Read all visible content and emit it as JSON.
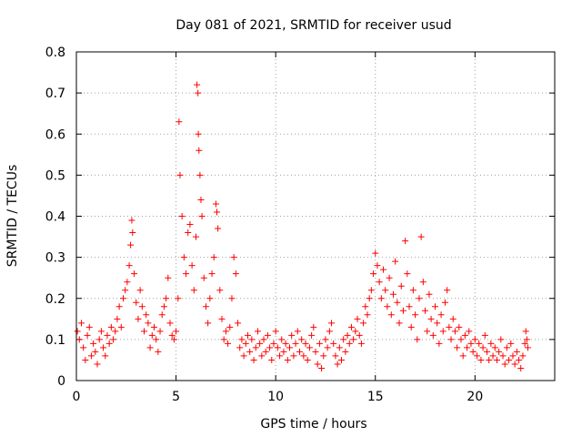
{
  "chart_data": {
    "type": "scatter",
    "title": "Day 081 of 2021, SRMTID for receiver usud",
    "xlabel": "GPS time / hours",
    "ylabel": "SRMTID / TECUs",
    "xlim": [
      0,
      24
    ],
    "ylim": [
      0,
      0.8
    ],
    "xticks": [
      0,
      5,
      10,
      15,
      20
    ],
    "yticks": [
      0,
      0.1,
      0.2,
      0.3,
      0.4,
      0.5,
      0.6,
      0.7,
      0.8
    ],
    "xtick_labels": [
      "0",
      "5",
      "10",
      "15",
      "20"
    ],
    "ytick_labels": [
      "0",
      "0.1",
      "0.2",
      "0.3",
      "0.4",
      "0.5",
      "0.6",
      "0.7",
      "0.8"
    ],
    "grid": true,
    "marker": "+",
    "marker_color": "#ff0000",
    "series": [
      {
        "name": "SRMTID",
        "points": [
          [
            0.05,
            0.12
          ],
          [
            0.15,
            0.1
          ],
          [
            0.25,
            0.14
          ],
          [
            0.35,
            0.08
          ],
          [
            0.45,
            0.05
          ],
          [
            0.55,
            0.11
          ],
          [
            0.65,
            0.13
          ],
          [
            0.75,
            0.06
          ],
          [
            0.85,
            0.09
          ],
          [
            0.95,
            0.07
          ],
          [
            1.05,
            0.04
          ],
          [
            1.15,
            0.1
          ],
          [
            1.25,
            0.12
          ],
          [
            1.35,
            0.08
          ],
          [
            1.45,
            0.06
          ],
          [
            1.55,
            0.11
          ],
          [
            1.65,
            0.09
          ],
          [
            1.75,
            0.13
          ],
          [
            1.85,
            0.1
          ],
          [
            1.95,
            0.12
          ],
          [
            2.05,
            0.15
          ],
          [
            2.15,
            0.18
          ],
          [
            2.25,
            0.13
          ],
          [
            2.35,
            0.2
          ],
          [
            2.45,
            0.22
          ],
          [
            2.55,
            0.24
          ],
          [
            2.65,
            0.28
          ],
          [
            2.72,
            0.33
          ],
          [
            2.78,
            0.39
          ],
          [
            2.82,
            0.36
          ],
          [
            2.9,
            0.26
          ],
          [
            3.0,
            0.19
          ],
          [
            3.1,
            0.15
          ],
          [
            3.2,
            0.22
          ],
          [
            3.3,
            0.18
          ],
          [
            3.4,
            0.12
          ],
          [
            3.5,
            0.16
          ],
          [
            3.6,
            0.14
          ],
          [
            3.7,
            0.08
          ],
          [
            3.8,
            0.11
          ],
          [
            3.9,
            0.13
          ],
          [
            4.0,
            0.1
          ],
          [
            4.1,
            0.07
          ],
          [
            4.2,
            0.12
          ],
          [
            4.3,
            0.16
          ],
          [
            4.4,
            0.18
          ],
          [
            4.5,
            0.2
          ],
          [
            4.6,
            0.25
          ],
          [
            4.7,
            0.14
          ],
          [
            4.8,
            0.11
          ],
          [
            4.9,
            0.1
          ],
          [
            5.0,
            0.12
          ],
          [
            5.1,
            0.2
          ],
          [
            5.15,
            0.63
          ],
          [
            5.2,
            0.5
          ],
          [
            5.3,
            0.4
          ],
          [
            5.4,
            0.3
          ],
          [
            5.5,
            0.26
          ],
          [
            5.6,
            0.36
          ],
          [
            5.7,
            0.38
          ],
          [
            5.8,
            0.28
          ],
          [
            5.9,
            0.22
          ],
          [
            6.0,
            0.35
          ],
          [
            6.05,
            0.72
          ],
          [
            6.1,
            0.7
          ],
          [
            6.12,
            0.6
          ],
          [
            6.15,
            0.56
          ],
          [
            6.2,
            0.5
          ],
          [
            6.25,
            0.44
          ],
          [
            6.3,
            0.4
          ],
          [
            6.4,
            0.25
          ],
          [
            6.5,
            0.18
          ],
          [
            6.6,
            0.14
          ],
          [
            6.7,
            0.2
          ],
          [
            6.8,
            0.26
          ],
          [
            6.9,
            0.3
          ],
          [
            7.0,
            0.43
          ],
          [
            7.05,
            0.41
          ],
          [
            7.1,
            0.37
          ],
          [
            7.2,
            0.22
          ],
          [
            7.3,
            0.15
          ],
          [
            7.4,
            0.1
          ],
          [
            7.5,
            0.12
          ],
          [
            7.6,
            0.09
          ],
          [
            7.7,
            0.13
          ],
          [
            7.8,
            0.2
          ],
          [
            7.9,
            0.3
          ],
          [
            8.0,
            0.26
          ],
          [
            8.1,
            0.14
          ],
          [
            8.2,
            0.08
          ],
          [
            8.3,
            0.1
          ],
          [
            8.4,
            0.06
          ],
          [
            8.5,
            0.09
          ],
          [
            8.6,
            0.11
          ],
          [
            8.7,
            0.07
          ],
          [
            8.8,
            0.1
          ],
          [
            8.9,
            0.05
          ],
          [
            9.0,
            0.08
          ],
          [
            9.1,
            0.12
          ],
          [
            9.2,
            0.09
          ],
          [
            9.3,
            0.06
          ],
          [
            9.4,
            0.1
          ],
          [
            9.5,
            0.07
          ],
          [
            9.6,
            0.11
          ],
          [
            9.7,
            0.08
          ],
          [
            9.8,
            0.05
          ],
          [
            9.9,
            0.09
          ],
          [
            10.0,
            0.12
          ],
          [
            10.1,
            0.08
          ],
          [
            10.2,
            0.06
          ],
          [
            10.3,
            0.1
          ],
          [
            10.4,
            0.07
          ],
          [
            10.5,
            0.09
          ],
          [
            10.6,
            0.05
          ],
          [
            10.7,
            0.08
          ],
          [
            10.8,
            0.11
          ],
          [
            10.9,
            0.06
          ],
          [
            11.0,
            0.09
          ],
          [
            11.1,
            0.12
          ],
          [
            11.2,
            0.07
          ],
          [
            11.3,
            0.1
          ],
          [
            11.4,
            0.06
          ],
          [
            11.5,
            0.09
          ],
          [
            11.6,
            0.05
          ],
          [
            11.7,
            0.08
          ],
          [
            11.8,
            0.11
          ],
          [
            11.9,
            0.13
          ],
          [
            12.0,
            0.07
          ],
          [
            12.1,
            0.04
          ],
          [
            12.2,
            0.09
          ],
          [
            12.3,
            0.03
          ],
          [
            12.4,
            0.06
          ],
          [
            12.5,
            0.1
          ],
          [
            12.6,
            0.08
          ],
          [
            12.7,
            0.12
          ],
          [
            12.8,
            0.14
          ],
          [
            12.9,
            0.09
          ],
          [
            13.0,
            0.06
          ],
          [
            13.1,
            0.04
          ],
          [
            13.2,
            0.08
          ],
          [
            13.3,
            0.05
          ],
          [
            13.4,
            0.1
          ],
          [
            13.5,
            0.07
          ],
          [
            13.6,
            0.11
          ],
          [
            13.7,
            0.09
          ],
          [
            13.8,
            0.13
          ],
          [
            13.9,
            0.1
          ],
          [
            14.0,
            0.12
          ],
          [
            14.1,
            0.15
          ],
          [
            14.2,
            0.11
          ],
          [
            14.3,
            0.09
          ],
          [
            14.4,
            0.14
          ],
          [
            14.5,
            0.18
          ],
          [
            14.6,
            0.16
          ],
          [
            14.7,
            0.2
          ],
          [
            14.8,
            0.22
          ],
          [
            14.9,
            0.26
          ],
          [
            15.0,
            0.31
          ],
          [
            15.1,
            0.28
          ],
          [
            15.2,
            0.24
          ],
          [
            15.3,
            0.2
          ],
          [
            15.4,
            0.27
          ],
          [
            15.5,
            0.22
          ],
          [
            15.6,
            0.18
          ],
          [
            15.7,
            0.25
          ],
          [
            15.8,
            0.16
          ],
          [
            15.9,
            0.21
          ],
          [
            16.0,
            0.29
          ],
          [
            16.1,
            0.19
          ],
          [
            16.2,
            0.14
          ],
          [
            16.3,
            0.23
          ],
          [
            16.4,
            0.17
          ],
          [
            16.5,
            0.34
          ],
          [
            16.6,
            0.26
          ],
          [
            16.7,
            0.18
          ],
          [
            16.8,
            0.13
          ],
          [
            16.9,
            0.22
          ],
          [
            17.0,
            0.16
          ],
          [
            17.1,
            0.1
          ],
          [
            17.2,
            0.2
          ],
          [
            17.3,
            0.35
          ],
          [
            17.4,
            0.24
          ],
          [
            17.5,
            0.17
          ],
          [
            17.6,
            0.12
          ],
          [
            17.7,
            0.21
          ],
          [
            17.8,
            0.15
          ],
          [
            17.9,
            0.11
          ],
          [
            18.0,
            0.18
          ],
          [
            18.1,
            0.14
          ],
          [
            18.2,
            0.09
          ],
          [
            18.3,
            0.16
          ],
          [
            18.4,
            0.12
          ],
          [
            18.5,
            0.19
          ],
          [
            18.6,
            0.22
          ],
          [
            18.7,
            0.13
          ],
          [
            18.8,
            0.1
          ],
          [
            18.9,
            0.15
          ],
          [
            19.0,
            0.12
          ],
          [
            19.1,
            0.08
          ],
          [
            19.2,
            0.13
          ],
          [
            19.3,
            0.1
          ],
          [
            19.4,
            0.06
          ],
          [
            19.5,
            0.11
          ],
          [
            19.6,
            0.08
          ],
          [
            19.7,
            0.12
          ],
          [
            19.8,
            0.09
          ],
          [
            19.9,
            0.07
          ],
          [
            20.0,
            0.1
          ],
          [
            20.1,
            0.06
          ],
          [
            20.2,
            0.09
          ],
          [
            20.3,
            0.05
          ],
          [
            20.4,
            0.08
          ],
          [
            20.5,
            0.11
          ],
          [
            20.6,
            0.07
          ],
          [
            20.7,
            0.05
          ],
          [
            20.8,
            0.09
          ],
          [
            20.9,
            0.06
          ],
          [
            21.0,
            0.08
          ],
          [
            21.1,
            0.05
          ],
          [
            21.2,
            0.07
          ],
          [
            21.3,
            0.1
          ],
          [
            21.4,
            0.06
          ],
          [
            21.5,
            0.04
          ],
          [
            21.6,
            0.08
          ],
          [
            21.7,
            0.05
          ],
          [
            21.8,
            0.09
          ],
          [
            21.9,
            0.06
          ],
          [
            22.0,
            0.04
          ],
          [
            22.1,
            0.07
          ],
          [
            22.2,
            0.05
          ],
          [
            22.3,
            0.03
          ],
          [
            22.4,
            0.06
          ],
          [
            22.5,
            0.09
          ],
          [
            22.55,
            0.12
          ],
          [
            22.6,
            0.1
          ],
          [
            22.65,
            0.08
          ]
        ]
      }
    ]
  }
}
